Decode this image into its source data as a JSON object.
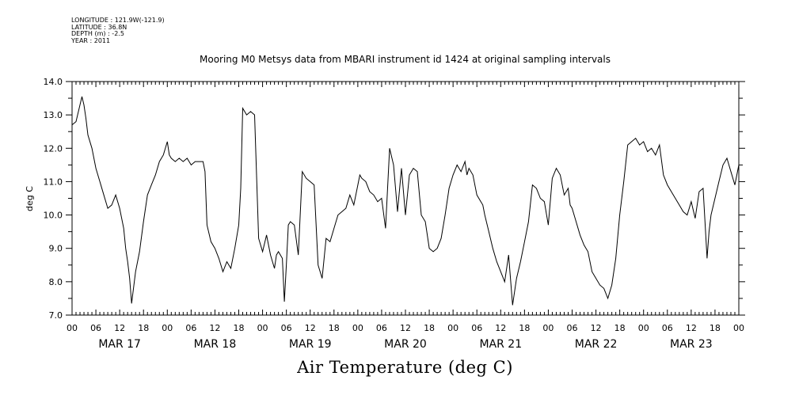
{
  "header": {
    "longitude": "LONGITUDE : 121.9W(-121.9)",
    "latitude": "LATITUDE : 36.8N",
    "depth": "DEPTH (m) : -2.5",
    "year": "YEAR : 2011"
  },
  "chart_data": {
    "type": "line",
    "title": "Mooring M0 Metsys data from MBARI instrument id 1424 at original sampling intervals",
    "xlabel": "Air Temperature (deg C)",
    "ylabel": "deg C",
    "ylim": [
      7.0,
      14.0
    ],
    "xlim_hours": [
      0,
      168
    ],
    "yticks": [
      "7.0",
      "8.0",
      "9.0",
      "10.0",
      "11.0",
      "12.0",
      "13.0",
      "14.0"
    ],
    "hour_tick_labels": [
      "00",
      "06",
      "12",
      "18",
      "00",
      "06",
      "12",
      "18",
      "00",
      "06",
      "12",
      "18",
      "00",
      "06",
      "12",
      "18",
      "00",
      "06",
      "12",
      "18",
      "00",
      "06",
      "12",
      "18",
      "00",
      "06",
      "12",
      "18",
      "00"
    ],
    "day_labels": [
      "MAR 17",
      "MAR 18",
      "MAR 19",
      "MAR 20",
      "MAR 21",
      "MAR 22",
      "MAR 23"
    ],
    "grid": false,
    "series": [
      {
        "x": [
          0,
          1,
          2,
          2.5,
          3,
          3.5,
          4,
          5,
          6,
          7,
          8,
          9,
          10,
          11,
          12,
          13,
          13.5,
          14,
          14.5,
          15,
          16,
          17,
          18,
          19,
          20,
          21,
          22,
          23,
          24,
          24.5,
          25,
          26,
          27,
          28,
          29,
          30,
          31,
          32,
          33,
          33.5,
          34,
          35,
          36,
          37,
          38,
          39,
          40,
          41,
          42,
          42.5,
          43,
          44,
          45,
          46,
          47,
          48,
          49,
          50,
          51,
          51.5,
          52,
          53,
          53.5,
          54,
          54.5,
          55,
          56,
          57,
          58,
          59,
          60,
          61,
          62,
          63,
          64,
          65,
          66,
          67,
          68,
          69,
          70,
          71,
          72,
          72.5,
          73,
          74,
          75,
          76,
          77,
          78,
          79,
          80,
          81,
          82,
          83,
          84,
          85,
          86,
          87,
          88,
          89,
          90,
          91,
          92,
          93,
          94,
          95,
          96,
          97,
          98,
          99,
          99.5,
          100,
          101,
          102,
          103,
          103.5,
          104,
          105,
          106,
          107,
          108,
          109,
          110,
          111,
          112,
          113,
          114,
          115,
          116,
          117,
          118,
          119,
          120,
          121,
          122,
          123,
          124,
          125,
          125.5,
          126,
          127,
          128,
          129,
          130,
          131,
          132,
          133,
          134,
          135,
          136,
          137,
          138,
          139,
          140,
          141,
          142,
          143,
          144,
          145,
          146,
          147,
          148,
          149,
          150,
          151,
          152,
          153,
          154,
          155,
          156,
          157,
          158,
          159,
          160,
          160.5,
          161,
          162,
          163,
          164,
          165,
          166,
          167,
          168
        ],
        "y": [
          12.7,
          12.8,
          13.3,
          13.55,
          13.3,
          12.9,
          12.4,
          12.0,
          11.4,
          11.0,
          10.6,
          10.2,
          10.3,
          10.6,
          10.2,
          9.6,
          9.0,
          8.6,
          8.1,
          7.35,
          8.3,
          8.9,
          9.8,
          10.6,
          10.9,
          11.2,
          11.6,
          11.8,
          12.2,
          11.8,
          11.7,
          11.6,
          11.7,
          11.6,
          11.7,
          11.5,
          11.6,
          11.6,
          11.6,
          11.3,
          9.7,
          9.2,
          9.0,
          8.7,
          8.3,
          8.6,
          8.4,
          9.0,
          9.7,
          10.8,
          13.2,
          13.0,
          13.1,
          13.0,
          9.3,
          8.9,
          9.4,
          8.8,
          8.4,
          8.8,
          8.9,
          8.7,
          7.4,
          8.5,
          9.7,
          9.8,
          9.7,
          8.8,
          11.3,
          11.1,
          11.0,
          10.9,
          8.5,
          8.1,
          9.3,
          9.2,
          9.6,
          10.0,
          10.1,
          10.2,
          10.6,
          10.3,
          10.9,
          11.2,
          11.1,
          11.0,
          10.7,
          10.6,
          10.4,
          10.5,
          9.6,
          12.0,
          11.5,
          10.1,
          11.4,
          10.0,
          11.2,
          11.4,
          11.3,
          10.0,
          9.8,
          9.0,
          8.9,
          9.0,
          9.3,
          10.0,
          10.8,
          11.2,
          11.5,
          11.3,
          11.6,
          11.2,
          11.4,
          11.2,
          10.6,
          10.4,
          10.3,
          10.0,
          9.5,
          9.0,
          8.6,
          8.3,
          8.0,
          8.8,
          7.3,
          8.1,
          8.6,
          9.2,
          9.8,
          10.9,
          10.8,
          10.5,
          10.4,
          9.7,
          11.1,
          11.4,
          11.2,
          10.6,
          10.8,
          10.3,
          10.2,
          9.8,
          9.4,
          9.1,
          8.9,
          8.3,
          8.1,
          7.9,
          7.8,
          7.5,
          7.9,
          8.7,
          10.0,
          11.0,
          12.1,
          12.2,
          12.3,
          12.1,
          12.2,
          11.9,
          12.0,
          11.8,
          12.1,
          11.2,
          10.9,
          10.7,
          10.5,
          10.3,
          10.1,
          10.0,
          10.4,
          9.9,
          10.7,
          10.8,
          8.7,
          9.5,
          10.0,
          10.5,
          11.0,
          11.5,
          11.7,
          11.3,
          10.9,
          11.5
        ]
      }
    ]
  }
}
